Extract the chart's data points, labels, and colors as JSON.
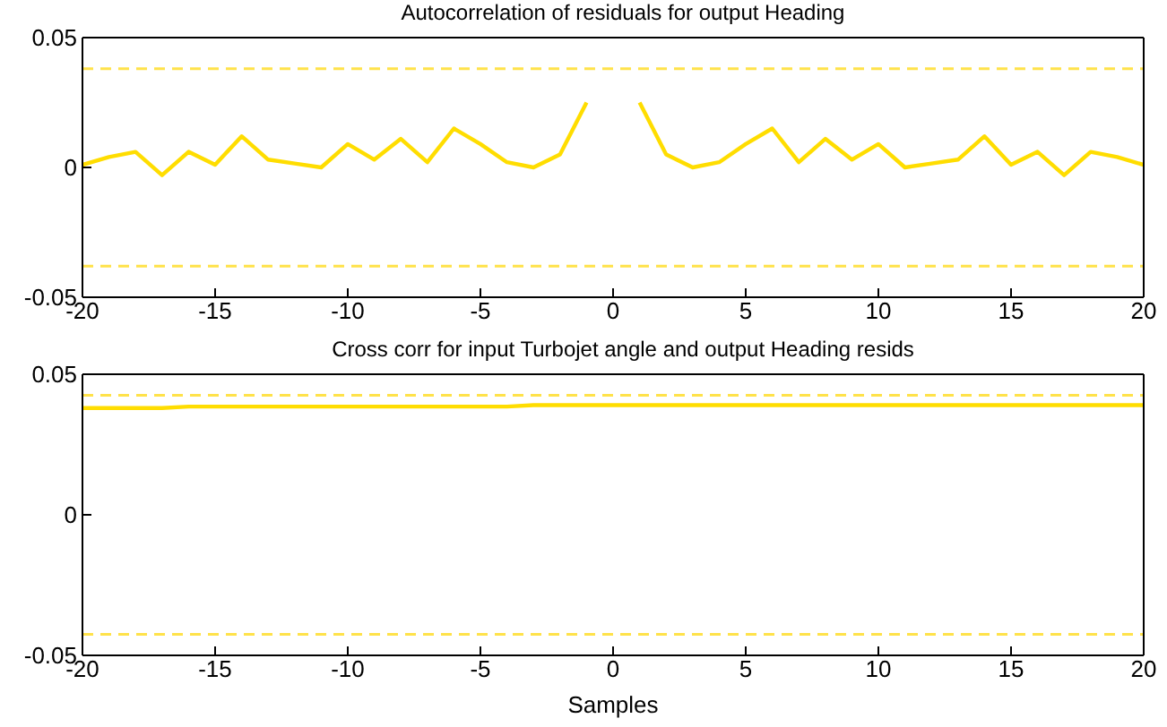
{
  "chart_data": [
    {
      "type": "line",
      "title": "Autocorrelation of residuals for output Heading",
      "x": [
        -20,
        -19,
        -18,
        -17,
        -16,
        -15,
        -14,
        -13,
        -12,
        -11,
        -10,
        -9,
        -8,
        -7,
        -6,
        -5,
        -4,
        -3,
        -2,
        -1,
        0,
        1,
        2,
        3,
        4,
        5,
        6,
        7,
        8,
        9,
        10,
        11,
        12,
        13,
        14,
        15,
        16,
        17,
        18,
        19,
        20
      ],
      "series": [
        {
          "color": "#ffdd00",
          "values": [
            0.001,
            0.004,
            0.006,
            -0.003,
            0.006,
            0.001,
            0.012,
            0.003,
            0.0015,
            0,
            0.009,
            0.003,
            0.011,
            0.002,
            0.015,
            0.009,
            0.002,
            0,
            0.005,
            0.025,
            null,
            0.025,
            0.005,
            0,
            0.002,
            0.009,
            0.015,
            0.002,
            0.011,
            0.003,
            0.009,
            0,
            0.0015,
            0.003,
            0.012,
            0.001,
            0.006,
            -0.003,
            0.006,
            0.004,
            0.001
          ]
        }
      ],
      "xlim": [
        -20,
        20
      ],
      "xticks": [
        -20,
        -15,
        -10,
        -5,
        0,
        5,
        10,
        15,
        20
      ],
      "ylim": [
        -0.05,
        0.05
      ],
      "yticks": [
        -0.05,
        0,
        0.05
      ],
      "ref_lines": [
        {
          "axis": "y",
          "value": 0.038,
          "color": "#ffe24a",
          "line_style": "dashed"
        },
        {
          "axis": "y",
          "value": -0.038,
          "color": "#ffe24a",
          "line_style": "dashed"
        }
      ],
      "grid": false,
      "marker": "none",
      "line_style": "solid"
    },
    {
      "type": "line",
      "title": "Cross corr for input Turbojet angle and output Heading resids",
      "xlabel": "Samples",
      "x": [
        -20,
        -19,
        -18,
        -17,
        -16,
        -15,
        -14,
        -13,
        -12,
        -11,
        -10,
        -9,
        -8,
        -7,
        -6,
        -5,
        -4,
        -3,
        -2,
        -1,
        0,
        1,
        2,
        3,
        4,
        5,
        6,
        7,
        8,
        9,
        10,
        11,
        12,
        13,
        14,
        15,
        16,
        17,
        18,
        19,
        20
      ],
      "series": [
        {
          "color": "#ffdd00",
          "values": [
            0.038,
            0.038,
            0.038,
            0.038,
            0.0385,
            0.0385,
            0.0385,
            0.0385,
            0.0385,
            0.0385,
            0.0385,
            0.0385,
            0.0385,
            0.0385,
            0.0385,
            0.0385,
            0.0385,
            0.039,
            0.039,
            0.039,
            0.039,
            0.039,
            0.039,
            0.039,
            0.039,
            0.039,
            0.039,
            0.039,
            0.039,
            0.039,
            0.039,
            0.039,
            0.039,
            0.039,
            0.039,
            0.039,
            0.039,
            0.039,
            0.039,
            0.039,
            0.039
          ]
        }
      ],
      "xlim": [
        -20,
        20
      ],
      "xticks": [
        -20,
        -15,
        -10,
        -5,
        0,
        5,
        10,
        15,
        20
      ],
      "ylim": [
        -0.05,
        0.05
      ],
      "yticks": [
        -0.05,
        0,
        0.05
      ],
      "ref_lines": [
        {
          "axis": "y",
          "value": 0.0425,
          "color": "#ffe24a",
          "line_style": "dashed"
        },
        {
          "axis": "y",
          "value": -0.0425,
          "color": "#ffe24a",
          "line_style": "dashed"
        }
      ],
      "grid": false,
      "marker": "none",
      "line_style": "solid"
    }
  ]
}
